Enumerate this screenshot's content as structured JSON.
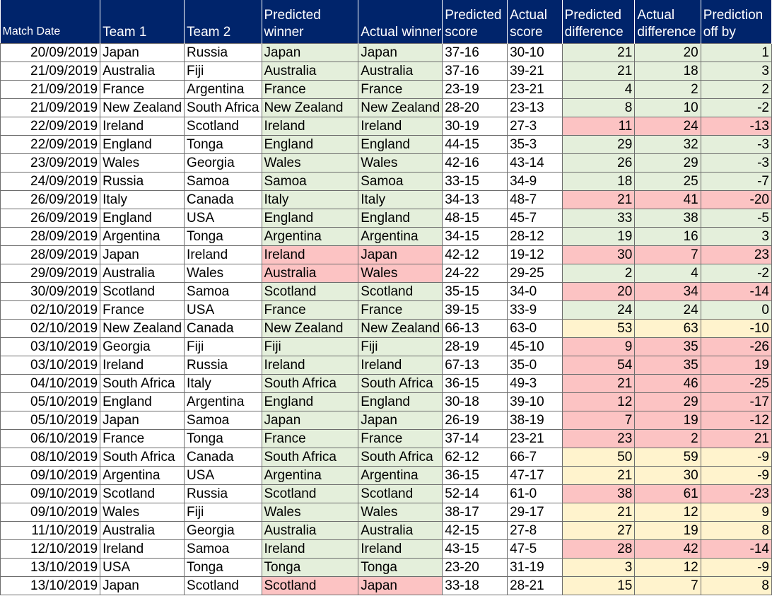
{
  "headers": [
    "Match Date",
    "Team 1",
    "Team 2",
    "Predicted winner",
    "Actual winner",
    "Predicted score",
    "Actual score",
    "Predicted difference",
    "Actual difference",
    "Prediction off by"
  ],
  "colors": {
    "header_bg": "#00246b",
    "header_text": "#ffffff",
    "correct_fill": "#e4efdb",
    "wrong_fill": "#fcc3c3",
    "moderate_fill": "#fff3cd",
    "border": "#6d6d6d"
  },
  "rows": [
    {
      "date": "20/09/2019",
      "team1": "Japan",
      "team2": "Russia",
      "pred_winner": "Japan",
      "actual_winner": "Japan",
      "pred_score": "37-16",
      "actual_score": "30-10",
      "pred_diff": "21",
      "actual_diff": "20",
      "off_by": "1",
      "winner_status": "correct",
      "diff_status": "correct"
    },
    {
      "date": "21/09/2019",
      "team1": "Australia",
      "team2": "Fiji",
      "pred_winner": "Australia",
      "actual_winner": "Australia",
      "pred_score": "37-16",
      "actual_score": "39-21",
      "pred_diff": "21",
      "actual_diff": "18",
      "off_by": "3",
      "winner_status": "correct",
      "diff_status": "correct"
    },
    {
      "date": "21/09/2019",
      "team1": "France",
      "team2": "Argentina",
      "pred_winner": "France",
      "actual_winner": "France",
      "pred_score": "23-19",
      "actual_score": "23-21",
      "pred_diff": "4",
      "actual_diff": "2",
      "off_by": "2",
      "winner_status": "correct",
      "diff_status": "correct"
    },
    {
      "date": "21/09/2019",
      "team1": "New Zealand",
      "team2": "South Africa",
      "pred_winner": "New Zealand",
      "actual_winner": "New Zealand",
      "pred_score": "28-20",
      "actual_score": "23-13",
      "pred_diff": "8",
      "actual_diff": "10",
      "off_by": "-2",
      "winner_status": "correct",
      "diff_status": "correct"
    },
    {
      "date": "22/09/2019",
      "team1": "Ireland",
      "team2": "Scotland",
      "pred_winner": "Ireland",
      "actual_winner": "Ireland",
      "pred_score": "30-19",
      "actual_score": "27-3",
      "pred_diff": "11",
      "actual_diff": "24",
      "off_by": "-13",
      "winner_status": "correct",
      "diff_status": "wrong"
    },
    {
      "date": "22/09/2019",
      "team1": "England",
      "team2": "Tonga",
      "pred_winner": "England",
      "actual_winner": "England",
      "pred_score": "44-15",
      "actual_score": "35-3",
      "pred_diff": "29",
      "actual_diff": "32",
      "off_by": "-3",
      "winner_status": "correct",
      "diff_status": "correct"
    },
    {
      "date": "23/09/2019",
      "team1": "Wales",
      "team2": "Georgia",
      "pred_winner": "Wales",
      "actual_winner": "Wales",
      "pred_score": "42-16",
      "actual_score": "43-14",
      "pred_diff": "26",
      "actual_diff": "29",
      "off_by": "-3",
      "winner_status": "correct",
      "diff_status": "correct"
    },
    {
      "date": "24/09/2019",
      "team1": "Russia",
      "team2": "Samoa",
      "pred_winner": "Samoa",
      "actual_winner": "Samoa",
      "pred_score": "33-15",
      "actual_score": "34-9",
      "pred_diff": "18",
      "actual_diff": "25",
      "off_by": "-7",
      "winner_status": "correct",
      "diff_status": "correct"
    },
    {
      "date": "26/09/2019",
      "team1": "Italy",
      "team2": "Canada",
      "pred_winner": "Italy",
      "actual_winner": "Italy",
      "pred_score": "34-13",
      "actual_score": "48-7",
      "pred_diff": "21",
      "actual_diff": "41",
      "off_by": "-20",
      "winner_status": "correct",
      "diff_status": "wrong"
    },
    {
      "date": "26/09/2019",
      "team1": "England",
      "team2": "USA",
      "pred_winner": "England",
      "actual_winner": "England",
      "pred_score": "48-15",
      "actual_score": "45-7",
      "pred_diff": "33",
      "actual_diff": "38",
      "off_by": "-5",
      "winner_status": "correct",
      "diff_status": "correct"
    },
    {
      "date": "28/09/2019",
      "team1": "Argentina",
      "team2": "Tonga",
      "pred_winner": "Argentina",
      "actual_winner": "Argentina",
      "pred_score": "34-15",
      "actual_score": "28-12",
      "pred_diff": "19",
      "actual_diff": "16",
      "off_by": "3",
      "winner_status": "correct",
      "diff_status": "correct"
    },
    {
      "date": "28/09/2019",
      "team1": "Japan",
      "team2": "Ireland",
      "pred_winner": "Ireland",
      "actual_winner": "Japan",
      "pred_score": "42-12",
      "actual_score": "19-12",
      "pred_diff": "30",
      "actual_diff": "7",
      "off_by": "23",
      "winner_status": "wrong",
      "diff_status": "wrong"
    },
    {
      "date": "29/09/2019",
      "team1": "Australia",
      "team2": "Wales",
      "pred_winner": "Australia",
      "actual_winner": "Wales",
      "pred_score": "24-22",
      "actual_score": "29-25",
      "pred_diff": "2",
      "actual_diff": "4",
      "off_by": "-2",
      "winner_status": "wrong",
      "diff_status": "correct"
    },
    {
      "date": "30/09/2019",
      "team1": "Scotland",
      "team2": "Samoa",
      "pred_winner": "Scotland",
      "actual_winner": "Scotland",
      "pred_score": "35-15",
      "actual_score": "34-0",
      "pred_diff": "20",
      "actual_diff": "34",
      "off_by": "-14",
      "winner_status": "correct",
      "diff_status": "wrong"
    },
    {
      "date": "02/10/2019",
      "team1": "France",
      "team2": "USA",
      "pred_winner": "France",
      "actual_winner": "France",
      "pred_score": "39-15",
      "actual_score": "33-9",
      "pred_diff": "24",
      "actual_diff": "24",
      "off_by": "0",
      "winner_status": "correct",
      "diff_status": "correct"
    },
    {
      "date": "02/10/2019",
      "team1": "New Zealand",
      "team2": "Canada",
      "pred_winner": "New Zealand",
      "actual_winner": "New Zealand",
      "pred_score": "66-13",
      "actual_score": "63-0",
      "pred_diff": "53",
      "actual_diff": "63",
      "off_by": "-10",
      "winner_status": "correct",
      "diff_status": "moderate"
    },
    {
      "date": "03/10/2019",
      "team1": "Georgia",
      "team2": "Fiji",
      "pred_winner": "Fiji",
      "actual_winner": "Fiji",
      "pred_score": "28-19",
      "actual_score": "45-10",
      "pred_diff": "9",
      "actual_diff": "35",
      "off_by": "-26",
      "winner_status": "correct",
      "diff_status": "wrong"
    },
    {
      "date": "03/10/2019",
      "team1": "Ireland",
      "team2": "Russia",
      "pred_winner": "Ireland",
      "actual_winner": "Ireland",
      "pred_score": "67-13",
      "actual_score": "35-0",
      "pred_diff": "54",
      "actual_diff": "35",
      "off_by": "19",
      "winner_status": "correct",
      "diff_status": "wrong"
    },
    {
      "date": "04/10/2019",
      "team1": "South Africa",
      "team2": "Italy",
      "pred_winner": "South Africa",
      "actual_winner": "South Africa",
      "pred_score": "36-15",
      "actual_score": "49-3",
      "pred_diff": "21",
      "actual_diff": "46",
      "off_by": "-25",
      "winner_status": "correct",
      "diff_status": "wrong"
    },
    {
      "date": "05/10/2019",
      "team1": "England",
      "team2": "Argentina",
      "pred_winner": "England",
      "actual_winner": "England",
      "pred_score": "30-18",
      "actual_score": "39-10",
      "pred_diff": "12",
      "actual_diff": "29",
      "off_by": "-17",
      "winner_status": "correct",
      "diff_status": "wrong"
    },
    {
      "date": "05/10/2019",
      "team1": "Japan",
      "team2": "Samoa",
      "pred_winner": "Japan",
      "actual_winner": "Japan",
      "pred_score": "26-19",
      "actual_score": "38-19",
      "pred_diff": "7",
      "actual_diff": "19",
      "off_by": "-12",
      "winner_status": "correct",
      "diff_status": "wrong"
    },
    {
      "date": "06/10/2019",
      "team1": "France",
      "team2": "Tonga",
      "pred_winner": "France",
      "actual_winner": "France",
      "pred_score": "37-14",
      "actual_score": "23-21",
      "pred_diff": "23",
      "actual_diff": "2",
      "off_by": "21",
      "winner_status": "correct",
      "diff_status": "wrong"
    },
    {
      "date": "08/10/2019",
      "team1": "South Africa",
      "team2": "Canada",
      "pred_winner": "South Africa",
      "actual_winner": "South Africa",
      "pred_score": "62-12",
      "actual_score": "66-7",
      "pred_diff": "50",
      "actual_diff": "59",
      "off_by": "-9",
      "winner_status": "correct",
      "diff_status": "moderate"
    },
    {
      "date": "09/10/2019",
      "team1": "Argentina",
      "team2": "USA",
      "pred_winner": "Argentina",
      "actual_winner": "Argentina",
      "pred_score": "36-15",
      "actual_score": "47-17",
      "pred_diff": "21",
      "actual_diff": "30",
      "off_by": "-9",
      "winner_status": "correct",
      "diff_status": "moderate"
    },
    {
      "date": "09/10/2019",
      "team1": "Scotland",
      "team2": "Russia",
      "pred_winner": "Scotland",
      "actual_winner": "Scotland",
      "pred_score": "52-14",
      "actual_score": "61-0",
      "pred_diff": "38",
      "actual_diff": "61",
      "off_by": "-23",
      "winner_status": "correct",
      "diff_status": "wrong"
    },
    {
      "date": "09/10/2019",
      "team1": "Wales",
      "team2": "Fiji",
      "pred_winner": "Wales",
      "actual_winner": "Wales",
      "pred_score": "38-17",
      "actual_score": "29-17",
      "pred_diff": "21",
      "actual_diff": "12",
      "off_by": "9",
      "winner_status": "correct",
      "diff_status": "moderate"
    },
    {
      "date": "11/10/2019",
      "team1": "Australia",
      "team2": "Georgia",
      "pred_winner": "Australia",
      "actual_winner": "Australia",
      "pred_score": "42-15",
      "actual_score": "27-8",
      "pred_diff": "27",
      "actual_diff": "19",
      "off_by": "8",
      "winner_status": "correct",
      "diff_status": "moderate"
    },
    {
      "date": "12/10/2019",
      "team1": "Ireland",
      "team2": "Samoa",
      "pred_winner": "Ireland",
      "actual_winner": "Ireland",
      "pred_score": "43-15",
      "actual_score": "47-5",
      "pred_diff": "28",
      "actual_diff": "42",
      "off_by": "-14",
      "winner_status": "correct",
      "diff_status": "wrong"
    },
    {
      "date": "13/10/2019",
      "team1": "USA",
      "team2": "Tonga",
      "pred_winner": "Tonga",
      "actual_winner": "Tonga",
      "pred_score": "23-20",
      "actual_score": "31-19",
      "pred_diff": "3",
      "actual_diff": "12",
      "off_by": "-9",
      "winner_status": "correct",
      "diff_status": "moderate"
    },
    {
      "date": "13/10/2019",
      "team1": "Japan",
      "team2": "Scotland",
      "pred_winner": "Scotland",
      "actual_winner": "Japan",
      "pred_score": "33-18",
      "actual_score": "28-21",
      "pred_diff": "15",
      "actual_diff": "7",
      "off_by": "8",
      "winner_status": "wrong",
      "diff_status": "moderate"
    }
  ]
}
